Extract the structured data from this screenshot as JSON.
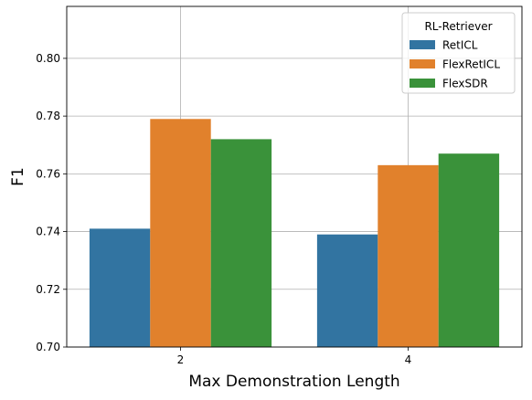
{
  "chart_data": {
    "type": "bar",
    "title": "",
    "xlabel": "Max Demonstration Length",
    "ylabel": "F1",
    "categories": [
      "2",
      "4"
    ],
    "series": [
      {
        "name": "RetICL",
        "values": [
          0.741,
          0.739
        ],
        "color": "#3274a1"
      },
      {
        "name": "FlexRetICL",
        "values": [
          0.779,
          0.763
        ],
        "color": "#e1812c"
      },
      {
        "name": "FlexSDR",
        "values": [
          0.772,
          0.767
        ],
        "color": "#3a923a"
      }
    ],
    "ylim": [
      0.7,
      0.818
    ],
    "yticks": [
      "0.70",
      "0.72",
      "0.74",
      "0.76",
      "0.78",
      "0.80"
    ],
    "grid": true,
    "legend": {
      "title": "RL-Retriever",
      "placement": "top-right"
    }
  }
}
